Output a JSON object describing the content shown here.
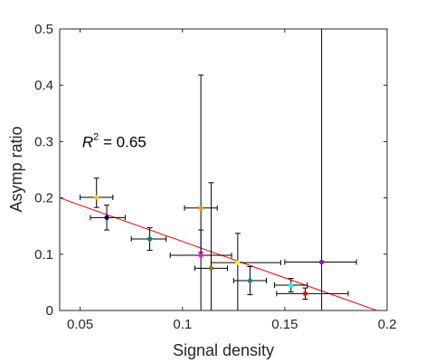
{
  "chart_data": {
    "type": "scatter",
    "title": "",
    "xlabel": "Signal density",
    "ylabel": "Asymp ratio",
    "xlim": [
      0.04,
      0.2
    ],
    "ylim": [
      0,
      0.5
    ],
    "x_ticks": [
      0.05,
      0.1,
      0.15,
      0.2
    ],
    "x_tick_labels": [
      "0.05",
      "0.1",
      "0.15",
      "0.2"
    ],
    "y_ticks": [
      0,
      0.1,
      0.2,
      0.3,
      0.4,
      0.5
    ],
    "y_tick_labels": [
      "0",
      "0.1",
      "0.2",
      "0.3",
      "0.4",
      "0.5"
    ],
    "grid": false,
    "annotation": {
      "r_symbol": "R",
      "superscript": "2",
      "value_text": " = 0.65",
      "x": 0.051,
      "y": 0.29
    },
    "fit_line": {
      "x": [
        0.04,
        0.195
      ],
      "y": [
        0.2,
        0.0
      ],
      "color": "#ff0000"
    },
    "points": [
      {
        "x": 0.058,
        "y": 0.201,
        "xerr": [
          0.008,
          0.008
        ],
        "yerr": [
          0.018,
          0.034
        ],
        "color": "#ffcc00"
      },
      {
        "x": 0.063,
        "y": 0.165,
        "xerr": [
          0.008,
          0.009
        ],
        "yerr": [
          0.022,
          0.022
        ],
        "color": "#000080"
      },
      {
        "x": 0.084,
        "y": 0.127,
        "xerr": [
          0.009,
          0.008
        ],
        "yerr": [
          0.02,
          0.02
        ],
        "color": "#008080"
      },
      {
        "x": 0.109,
        "y": 0.182,
        "xerr": [
          0.008,
          0.008
        ],
        "yerr": [
          0.079,
          0.236
        ],
        "color": "#ff8c00"
      },
      {
        "x": 0.109,
        "y": 0.098,
        "xerr": [
          0.015,
          0.015
        ],
        "yerr": [
          0.098,
          0.045
        ],
        "color": "#ff00ff"
      },
      {
        "x": 0.114,
        "y": 0.075,
        "xerr": [
          0.008,
          0.008
        ],
        "yerr": [
          0.075,
          0.152
        ],
        "color": "#808000"
      },
      {
        "x": 0.127,
        "y": 0.085,
        "xerr": [
          0.013,
          0.021
        ],
        "yerr": [
          0.085,
          0.052
        ],
        "color": "#ffff00"
      },
      {
        "x": 0.133,
        "y": 0.053,
        "xerr": [
          0.008,
          0.008
        ],
        "yerr": [
          0.025,
          0.025
        ],
        "color": "#008b8b"
      },
      {
        "x": 0.153,
        "y": 0.045,
        "xerr": [
          0.008,
          0.008
        ],
        "yerr": [
          0.012,
          0.012
        ],
        "color": "#00ffff"
      },
      {
        "x": 0.16,
        "y": 0.03,
        "xerr": [
          0.014,
          0.021
        ],
        "yerr": [
          0.01,
          0.01
        ],
        "color": "#ff0000"
      },
      {
        "x": 0.168,
        "y": 0.086,
        "xerr": [
          0.018,
          0.017
        ],
        "yerr": [
          0.086,
          0.414
        ],
        "color": "#9400d3"
      }
    ]
  }
}
